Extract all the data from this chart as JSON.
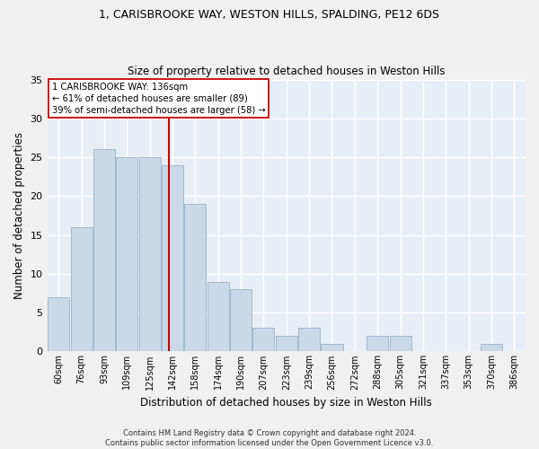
{
  "title1": "1, CARISBROOKE WAY, WESTON HILLS, SPALDING, PE12 6DS",
  "title2": "Size of property relative to detached houses in Weston Hills",
  "xlabel": "Distribution of detached houses by size in Weston Hills",
  "ylabel": "Number of detached properties",
  "footer1": "Contains HM Land Registry data © Crown copyright and database right 2024.",
  "footer2": "Contains public sector information licensed under the Open Government Licence v3.0.",
  "bar_labels": [
    "60sqm",
    "76sqm",
    "93sqm",
    "109sqm",
    "125sqm",
    "142sqm",
    "158sqm",
    "174sqm",
    "190sqm",
    "207sqm",
    "223sqm",
    "239sqm",
    "256sqm",
    "272sqm",
    "288sqm",
    "305sqm",
    "321sqm",
    "337sqm",
    "353sqm",
    "370sqm",
    "386sqm"
  ],
  "bar_values": [
    7,
    16,
    26,
    25,
    25,
    24,
    19,
    9,
    8,
    3,
    2,
    3,
    1,
    0,
    2,
    2,
    0,
    0,
    0,
    1,
    0
  ],
  "bar_color": "#c9d9e8",
  "bar_edge_color": "#a0b8cc",
  "background_color": "#e8eef5",
  "grid_color": "#ffffff",
  "annotation_line1": "1 CARISBROOKE WAY: 136sqm",
  "annotation_line2": "← 61% of detached houses are smaller (89)",
  "annotation_line3": "39% of semi-detached houses are larger (58) →",
  "vline_color": "#cc0000",
  "annotation_box_color": "#ffffff",
  "annotation_box_edge": "#cc0000",
  "vline_x": 4.85,
  "ylim": [
    0,
    35
  ],
  "yticks": [
    0,
    5,
    10,
    15,
    20,
    25,
    30,
    35
  ],
  "fig_bg": "#f0f0f0"
}
